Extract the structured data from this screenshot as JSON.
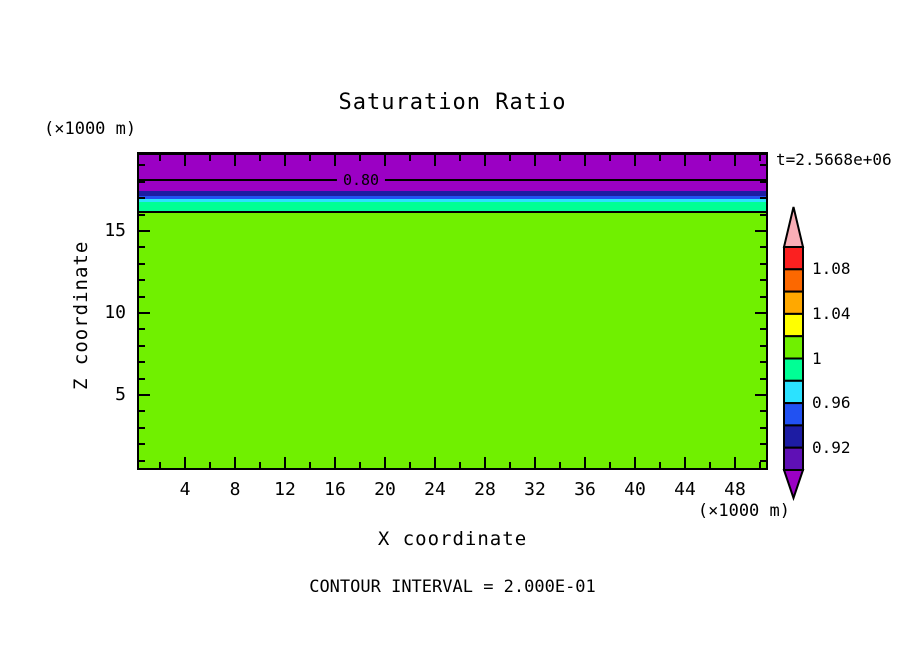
{
  "title": "Saturation Ratio",
  "time_annotation": "t=2.5668e+06",
  "contour_note": "CONTOUR INTERVAL = 2.000E-01",
  "axes": {
    "x": {
      "label": "X coordinate",
      "unit": "(×1000 m)",
      "major_ticks": [
        4,
        8,
        12,
        16,
        20,
        24,
        28,
        32,
        36,
        40,
        44,
        48
      ],
      "minor_ticks": [
        2,
        6,
        10,
        14,
        18,
        22,
        26,
        30,
        34,
        38,
        42,
        46,
        50
      ]
    },
    "y": {
      "label": "Z coordinate",
      "unit": "(×1000 m)",
      "major_ticks": [
        5,
        10,
        15
      ],
      "minor_ticks": [
        1,
        2,
        3,
        4,
        6,
        7,
        8,
        9,
        11,
        12,
        13,
        14,
        16,
        17,
        18,
        19
      ]
    }
  },
  "colorbar": {
    "arrow_top": {
      "color": "#F9AEB6",
      "meaning": "> 1.10"
    },
    "segments": [
      {
        "color": "#FB2020",
        "range": "1.08-1.10"
      },
      {
        "color": "#FC6800",
        "range": "1.06-1.08"
      },
      {
        "color": "#FFA800",
        "range": "1.04-1.06"
      },
      {
        "color": "#FFFF00",
        "range": "1.02-1.04"
      },
      {
        "color": "#70F000",
        "range": "1.00-1.02"
      },
      {
        "color": "#00FF95",
        "range": "0.98-1.00"
      },
      {
        "color": "#2BE2FF",
        "range": "0.96-0.98"
      },
      {
        "color": "#2151F2",
        "range": "0.94-0.96"
      },
      {
        "color": "#1D1CA3",
        "range": "0.92-0.94"
      },
      {
        "color": "#5F10B5",
        "range": "0.90-0.92"
      }
    ],
    "arrow_bottom": {
      "color": "#9B00C4",
      "meaning": "< 0.90"
    },
    "labels": [
      {
        "text": "1.08",
        "boundary": 1
      },
      {
        "text": "1.04",
        "boundary": 3
      },
      {
        "text": "1",
        "boundary": 5
      },
      {
        "text": "0.96",
        "boundary": 7
      },
      {
        "text": "0.92",
        "boundary": 9
      }
    ]
  },
  "chart_data": {
    "type": "heatmap",
    "title": "Saturation Ratio",
    "xlabel": "X coordinate",
    "ylabel": "Z coordinate",
    "x_unit": "(×1000 m)",
    "y_unit": "(×1000 m)",
    "xlim": [
      0,
      50.5
    ],
    "ylim": [
      0.4,
      19.8
    ],
    "x_major_ticks": [
      4,
      8,
      12,
      16,
      20,
      24,
      28,
      32,
      36,
      40,
      44,
      48
    ],
    "y_major_ticks": [
      5,
      10,
      15
    ],
    "time": "t=2.5668e+06",
    "contour_interval": "2.000E-01",
    "colorbar_tick_values": [
      1.08,
      1.04,
      1,
      0.96,
      0.92
    ],
    "field_description": "Horizontally uniform layered saturation-ratio field: low saturation (~0.8, purple) band at the top of the domain, thin transition bands (navy, blue, cyan, spring green) below it, and saturation ~1.0 (green) filling the rest of the domain.",
    "layers_top_to_bottom": [
      {
        "z_top": 19.8,
        "z_bottom": 17.45,
        "value": "< 0.90",
        "color": "#9B00C4"
      },
      {
        "z_top": 17.45,
        "z_bottom": 17.13,
        "value": "0.92-0.94",
        "color": "#1D1CA3"
      },
      {
        "z_top": 17.13,
        "z_bottom": 16.95,
        "value": "0.94-0.96",
        "color": "#2151F2"
      },
      {
        "z_top": 16.95,
        "z_bottom": 16.77,
        "value": "0.96-0.98",
        "color": "#2BE2FF"
      },
      {
        "z_top": 16.77,
        "z_bottom": 16.22,
        "value": "0.98-1.00",
        "color": "#00FF95"
      },
      {
        "z_top": 16.22,
        "z_bottom": 0.4,
        "value": "1.00-1.02",
        "color": "#70F000"
      }
    ],
    "labeled_contours": [
      {
        "label": "0.80",
        "value": 0.8,
        "z": 18.2,
        "label_x": 18.1
      }
    ],
    "unlabeled_contours": [
      {
        "value": 1.0,
        "z": 16.22
      }
    ]
  }
}
